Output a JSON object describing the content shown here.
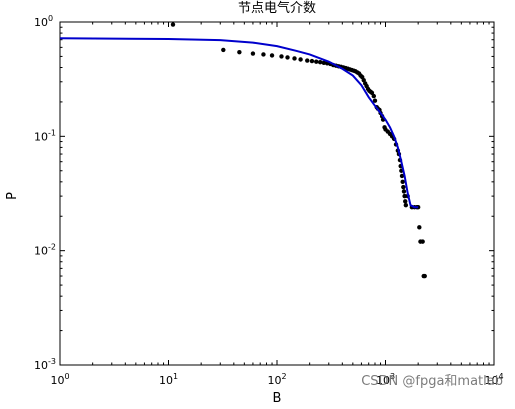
{
  "chart_data": {
    "type": "scatter",
    "title": "节点电气介数",
    "xlabel": "B",
    "ylabel": "P",
    "xscale": "log",
    "yscale": "log",
    "xlim": [
      1,
      10000
    ],
    "ylim": [
      0.001,
      1
    ],
    "xticks": [
      {
        "value": 1,
        "base": "10",
        "exp": "0"
      },
      {
        "value": 10,
        "base": "10",
        "exp": "1"
      },
      {
        "value": 100,
        "base": "10",
        "exp": "2"
      },
      {
        "value": 1000,
        "base": "10",
        "exp": "3"
      },
      {
        "value": 10000,
        "base": "10",
        "exp": "4"
      }
    ],
    "yticks": [
      {
        "value": 0.001,
        "base": "10",
        "exp": "-3"
      },
      {
        "value": 0.01,
        "base": "10",
        "exp": "-2"
      },
      {
        "value": 0.1,
        "base": "10",
        "exp": "-1"
      },
      {
        "value": 1,
        "base": "10",
        "exp": "0"
      }
    ],
    "grid": false,
    "series": [
      {
        "type": "scatter",
        "color": "#000000",
        "points": [
          [
            11,
            0.95
          ],
          [
            32,
            0.57
          ],
          [
            45,
            0.545
          ],
          [
            60,
            0.53
          ],
          [
            75,
            0.52
          ],
          [
            90,
            0.51
          ],
          [
            110,
            0.5
          ],
          [
            125,
            0.49
          ],
          [
            145,
            0.48
          ],
          [
            165,
            0.47
          ],
          [
            190,
            0.46
          ],
          [
            210,
            0.455
          ],
          [
            230,
            0.45
          ],
          [
            250,
            0.445
          ],
          [
            270,
            0.44
          ],
          [
            290,
            0.435
          ],
          [
            310,
            0.43
          ],
          [
            330,
            0.42
          ],
          [
            350,
            0.415
          ],
          [
            370,
            0.41
          ],
          [
            390,
            0.405
          ],
          [
            410,
            0.4
          ],
          [
            430,
            0.395
          ],
          [
            450,
            0.39
          ],
          [
            470,
            0.385
          ],
          [
            490,
            0.38
          ],
          [
            510,
            0.375
          ],
          [
            530,
            0.37
          ],
          [
            550,
            0.362
          ],
          [
            570,
            0.355
          ],
          [
            590,
            0.34
          ],
          [
            610,
            0.33
          ],
          [
            630,
            0.31
          ],
          [
            650,
            0.29
          ],
          [
            670,
            0.275
          ],
          [
            690,
            0.26
          ],
          [
            710,
            0.25
          ],
          [
            730,
            0.245
          ],
          [
            750,
            0.24
          ],
          [
            780,
            0.225
          ],
          [
            800,
            0.205
          ],
          [
            830,
            0.18
          ],
          [
            850,
            0.175
          ],
          [
            880,
            0.17
          ],
          [
            900,
            0.16
          ],
          [
            930,
            0.15
          ],
          [
            950,
            0.14
          ],
          [
            980,
            0.12
          ],
          [
            1000,
            0.115
          ],
          [
            1050,
            0.11
          ],
          [
            1100,
            0.105
          ],
          [
            1150,
            0.1
          ],
          [
            1200,
            0.095
          ],
          [
            1250,
            0.085
          ],
          [
            1300,
            0.075
          ],
          [
            1330,
            0.07
          ],
          [
            1360,
            0.062
          ],
          [
            1380,
            0.055
          ],
          [
            1400,
            0.05
          ],
          [
            1420,
            0.045
          ],
          [
            1440,
            0.04
          ],
          [
            1460,
            0.036
          ],
          [
            1480,
            0.033
          ],
          [
            1500,
            0.03
          ],
          [
            1520,
            0.027
          ],
          [
            1540,
            0.025
          ],
          [
            1600,
            0.03
          ],
          [
            1750,
            0.024
          ],
          [
            1850,
            0.024
          ],
          [
            1950,
            0.024
          ],
          [
            2000,
            0.024
          ],
          [
            2050,
            0.016
          ],
          [
            2100,
            0.012
          ],
          [
            2200,
            0.012
          ],
          [
            2250,
            0.006
          ],
          [
            2300,
            0.006
          ]
        ]
      },
      {
        "type": "line",
        "color": "#0000cc",
        "points": [
          [
            1,
            0.72
          ],
          [
            10,
            0.71
          ],
          [
            30,
            0.695
          ],
          [
            60,
            0.66
          ],
          [
            100,
            0.615
          ],
          [
            150,
            0.56
          ],
          [
            200,
            0.52
          ],
          [
            300,
            0.45
          ],
          [
            400,
            0.39
          ],
          [
            500,
            0.34
          ],
          [
            600,
            0.28
          ],
          [
            700,
            0.22
          ],
          [
            800,
            0.185
          ],
          [
            900,
            0.16
          ],
          [
            1000,
            0.14
          ],
          [
            1100,
            0.12
          ],
          [
            1200,
            0.1
          ],
          [
            1300,
            0.08
          ],
          [
            1400,
            0.06
          ],
          [
            1500,
            0.045
          ],
          [
            1600,
            0.032
          ],
          [
            1700,
            0.025
          ],
          [
            1850,
            0.024
          ],
          [
            2000,
            0.024
          ]
        ]
      }
    ]
  },
  "watermark": "CSDN @fpga和matlab"
}
